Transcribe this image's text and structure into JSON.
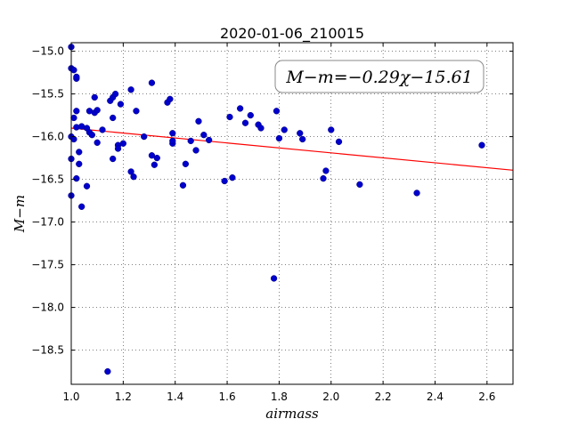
{
  "chart_data": {
    "type": "scatter",
    "title": "2020-01-06_210015",
    "xlabel": "airmass",
    "ylabel": "M−m",
    "annotation": "M−m=−0.29χ−15.61",
    "xlim": [
      1.0,
      2.7
    ],
    "ylim": [
      -18.9,
      -14.9
    ],
    "y_inverted": true,
    "xticks": [
      1.0,
      1.2,
      1.4,
      1.6,
      1.8,
      2.0,
      2.2,
      2.4,
      2.6
    ],
    "xtick_labels": [
      "1.0",
      "1.2",
      "1.4",
      "1.6",
      "1.8",
      "2.0",
      "2.2",
      "2.4",
      "2.6"
    ],
    "yticks": [
      -15.0,
      -15.5,
      -16.0,
      -16.5,
      -17.0,
      -17.5,
      -18.0,
      -18.5
    ],
    "ytick_labels": [
      "−15.0",
      "−15.5",
      "−16.0",
      "−16.5",
      "−17.0",
      "−17.5",
      "−18.0",
      "−18.5"
    ],
    "grid": true,
    "point_color": "#0000cc",
    "fit": {
      "slope": -0.29,
      "intercept": -15.61,
      "color": "#ff0000"
    },
    "points": [
      [
        1.0,
        -14.95
      ],
      [
        1.0,
        -15.2
      ],
      [
        1.01,
        -15.22
      ],
      [
        1.02,
        -15.32
      ],
      [
        1.02,
        -15.3
      ],
      [
        1.0,
        -16.0
      ],
      [
        1.01,
        -16.03
      ],
      [
        1.0,
        -16.26
      ],
      [
        1.0,
        -16.69
      ],
      [
        1.02,
        -16.49
      ],
      [
        1.01,
        -15.78
      ],
      [
        1.02,
        -15.7
      ],
      [
        1.02,
        -15.89
      ],
      [
        1.03,
        -16.18
      ],
      [
        1.03,
        -16.32
      ],
      [
        1.04,
        -15.88
      ],
      [
        1.04,
        -16.82
      ],
      [
        1.06,
        -16.58
      ],
      [
        1.06,
        -15.9
      ],
      [
        1.07,
        -15.95
      ],
      [
        1.07,
        -15.7
      ],
      [
        1.08,
        -15.98
      ],
      [
        1.09,
        -15.54
      ],
      [
        1.09,
        -15.72
      ],
      [
        1.1,
        -16.07
      ],
      [
        1.1,
        -15.69
      ],
      [
        1.12,
        -15.92
      ],
      [
        1.14,
        -18.75
      ],
      [
        1.15,
        -15.58
      ],
      [
        1.16,
        -15.54
      ],
      [
        1.16,
        -16.26
      ],
      [
        1.16,
        -15.78
      ],
      [
        1.17,
        -15.5
      ],
      [
        1.18,
        -16.1
      ],
      [
        1.18,
        -16.14
      ],
      [
        1.19,
        -15.62
      ],
      [
        1.2,
        -16.08
      ],
      [
        1.23,
        -15.45
      ],
      [
        1.23,
        -16.41
      ],
      [
        1.24,
        -16.47
      ],
      [
        1.25,
        -15.7
      ],
      [
        1.28,
        -16.0
      ],
      [
        1.31,
        -15.37
      ],
      [
        1.31,
        -16.22
      ],
      [
        1.32,
        -16.33
      ],
      [
        1.33,
        -16.25
      ],
      [
        1.37,
        -15.6
      ],
      [
        1.38,
        -15.56
      ],
      [
        1.39,
        -15.96
      ],
      [
        1.39,
        -16.08
      ],
      [
        1.39,
        -16.05
      ],
      [
        1.43,
        -16.57
      ],
      [
        1.44,
        -16.32
      ],
      [
        1.46,
        -16.05
      ],
      [
        1.48,
        -16.16
      ],
      [
        1.49,
        -15.82
      ],
      [
        1.51,
        -15.98
      ],
      [
        1.53,
        -16.04
      ],
      [
        1.59,
        -16.52
      ],
      [
        1.61,
        -15.77
      ],
      [
        1.62,
        -16.48
      ],
      [
        1.65,
        -15.67
      ],
      [
        1.67,
        -15.84
      ],
      [
        1.69,
        -15.75
      ],
      [
        1.72,
        -15.86
      ],
      [
        1.73,
        -15.9
      ],
      [
        1.78,
        -17.66
      ],
      [
        1.79,
        -15.7
      ],
      [
        1.8,
        -16.02
      ],
      [
        1.82,
        -15.92
      ],
      [
        1.88,
        -15.96
      ],
      [
        1.89,
        -16.03
      ],
      [
        1.97,
        -16.49
      ],
      [
        1.98,
        -16.4
      ],
      [
        2.0,
        -15.92
      ],
      [
        2.03,
        -16.06
      ],
      [
        2.11,
        -16.56
      ],
      [
        2.33,
        -16.66
      ],
      [
        2.58,
        -16.1
      ]
    ]
  }
}
